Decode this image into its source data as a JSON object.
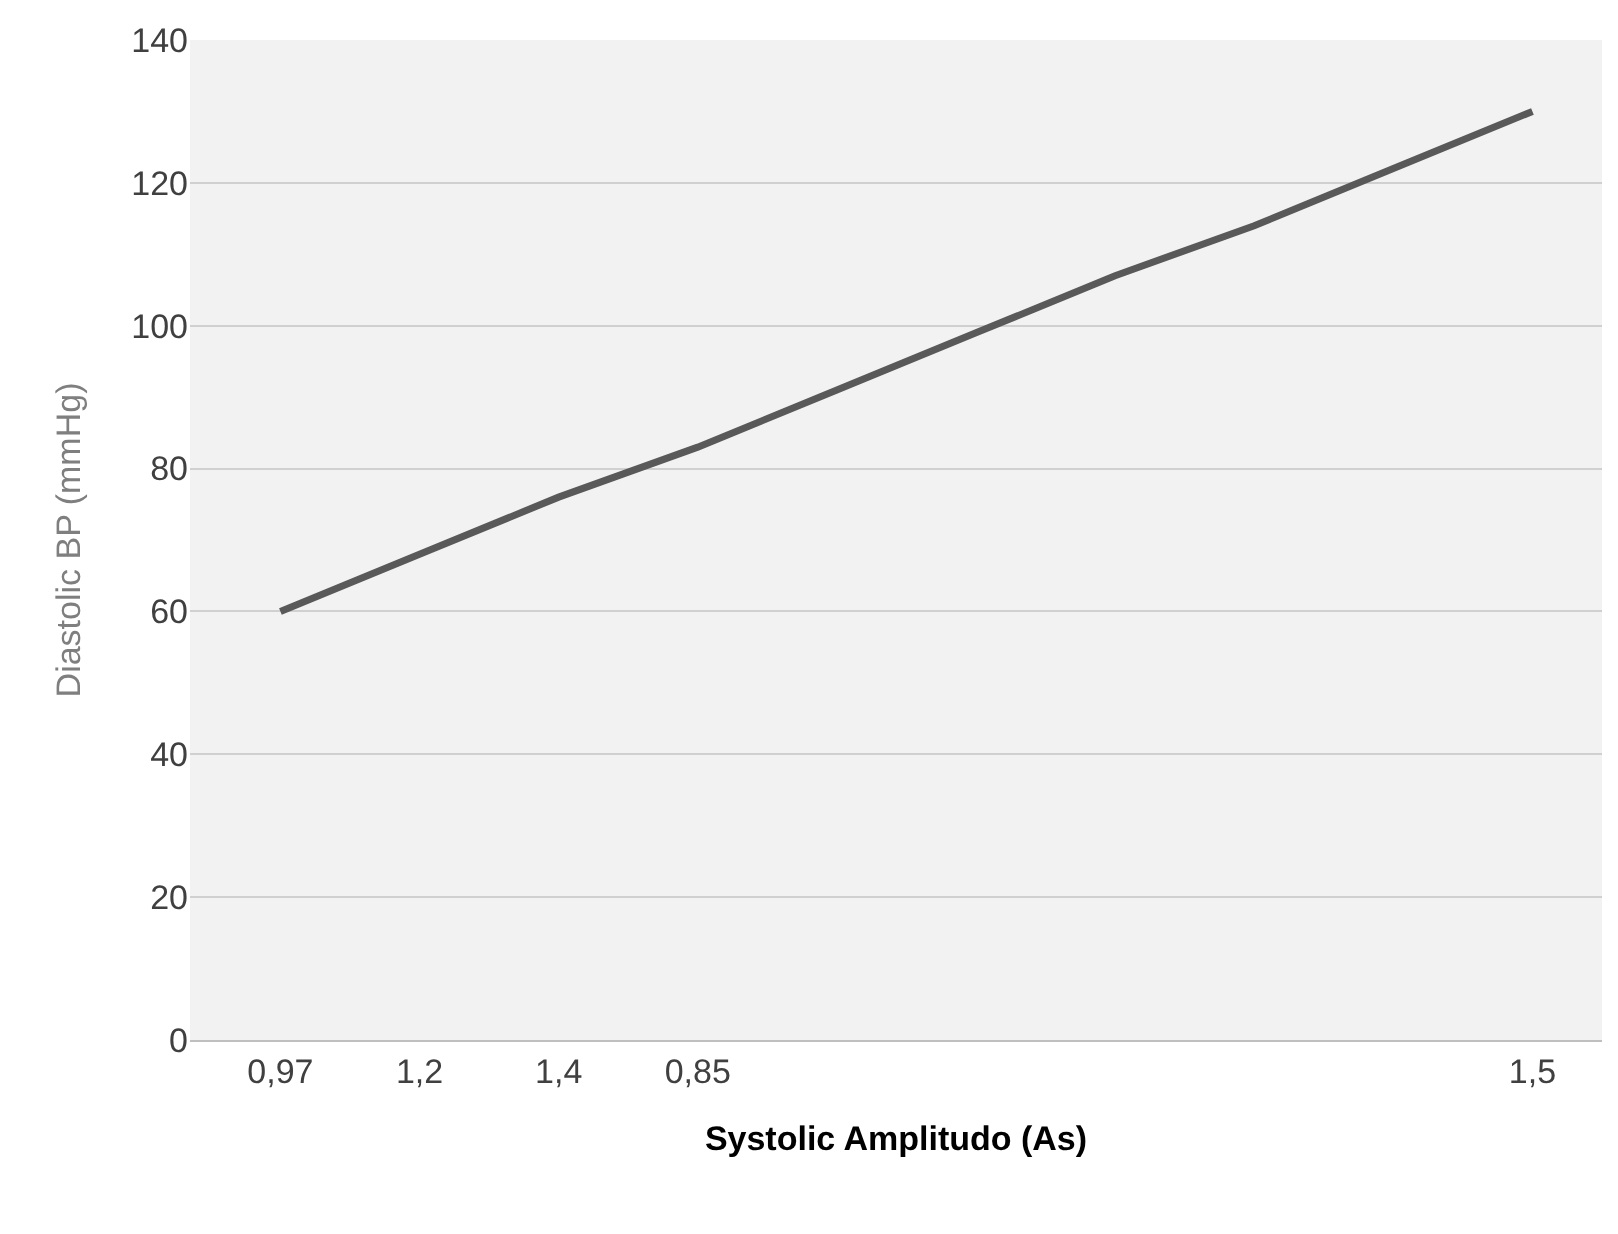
{
  "chart_data": {
    "type": "line",
    "xlabel": "Systolic Amplitudo (As)",
    "ylabel": "Diastolic BP (mmHg)",
    "categories": [
      "0,97",
      "1,2",
      "1,4",
      "0,85",
      null,
      null,
      null,
      null,
      null,
      "1,5"
    ],
    "series": [
      {
        "color": "#595959",
        "values": [
          60,
          68,
          76,
          83,
          91,
          99,
          107,
          114,
          122,
          130
        ]
      }
    ],
    "ylim": [
      0,
      140
    ],
    "yticks": [
      0,
      20,
      40,
      60,
      80,
      100,
      120,
      140
    ],
    "grid": "y",
    "marker": "none",
    "line_style": "solid"
  }
}
